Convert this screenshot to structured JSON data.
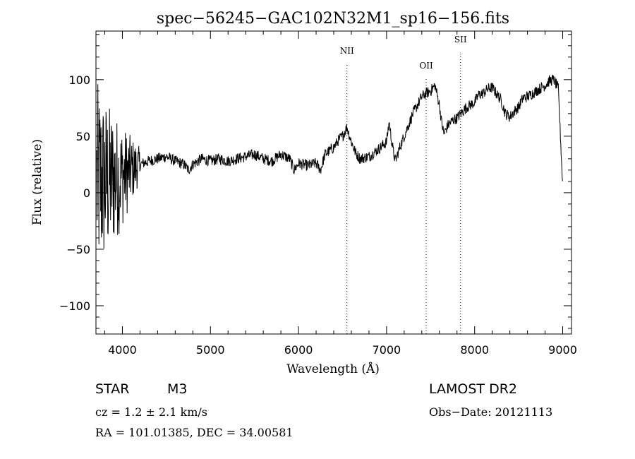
{
  "chart_data": {
    "type": "line",
    "title": "spec−56245−GAC102N32M1_sp16−156.fits",
    "xlabel": "Wavelength (Å)",
    "ylabel": "Flux (relative)",
    "xlim": [
      3700,
      9100
    ],
    "ylim": [
      -125,
      143
    ],
    "x_ticks": [
      4000,
      5000,
      6000,
      7000,
      8000,
      9000
    ],
    "x_tick_labels": [
      "4000",
      "5000",
      "6000",
      "7000",
      "8000",
      "9000"
    ],
    "y_ticks": [
      -100,
      -50,
      0,
      50,
      100
    ],
    "y_tick_labels": [
      "−100",
      "−50",
      "0",
      "50",
      "100"
    ],
    "x_minor_step": 200,
    "y_minor_step": 10,
    "line_markers": [
      {
        "label": "NII",
        "wavelength": 6550,
        "label_y": 123
      },
      {
        "label": "OII",
        "wavelength": 7450,
        "label_y": 110
      },
      {
        "label": "SII",
        "wavelength": 7840,
        "label_y": 133
      }
    ],
    "series": [
      {
        "name": "flux",
        "noise_region": [
          3700,
          4200
        ],
        "x": [
          3700,
          3800,
          3900,
          4000,
          4100,
          4200,
          4300,
          4400,
          4500,
          4600,
          4700,
          4750,
          4800,
          4900,
          5000,
          5100,
          5200,
          5300,
          5400,
          5500,
          5600,
          5700,
          5800,
          5900,
          5950,
          6000,
          6100,
          6200,
          6250,
          6300,
          6400,
          6450,
          6500,
          6550,
          6600,
          6650,
          6700,
          6800,
          6900,
          7000,
          7030,
          7050,
          7080,
          7100,
          7150,
          7200,
          7300,
          7400,
          7450,
          7500,
          7550,
          7600,
          7620,
          7650,
          7700,
          7750,
          7800,
          7900,
          8000,
          8050,
          8100,
          8150,
          8200,
          8300,
          8350,
          8400,
          8450,
          8500,
          8550,
          8600,
          8700,
          8800,
          8850,
          8900,
          8950,
          9000
        ],
        "y": [
          10,
          10,
          12,
          15,
          20,
          25,
          28,
          30,
          32,
          28,
          25,
          20,
          25,
          30,
          28,
          30,
          28,
          30,
          32,
          34,
          30,
          28,
          34,
          30,
          20,
          26,
          24,
          26,
          20,
          34,
          40,
          46,
          50,
          58,
          45,
          35,
          30,
          32,
          38,
          45,
          63,
          50,
          35,
          28,
          40,
          50,
          70,
          85,
          88,
          90,
          95,
          78,
          65,
          52,
          60,
          64,
          66,
          75,
          80,
          87,
          88,
          92,
          93,
          82,
          70,
          67,
          72,
          76,
          84,
          85,
          90,
          95,
          99,
          100,
          92,
          5
        ]
      }
    ]
  },
  "info": {
    "object_class": "STAR",
    "object_subclass": "M3",
    "survey": "LAMOST DR2",
    "redshift_text": "cz = 1.2 ± 2.1 km/s",
    "obs_date_text": "Obs−Date: 20121113",
    "coords_text": "RA = 101.01385, DEC =  34.00581"
  }
}
